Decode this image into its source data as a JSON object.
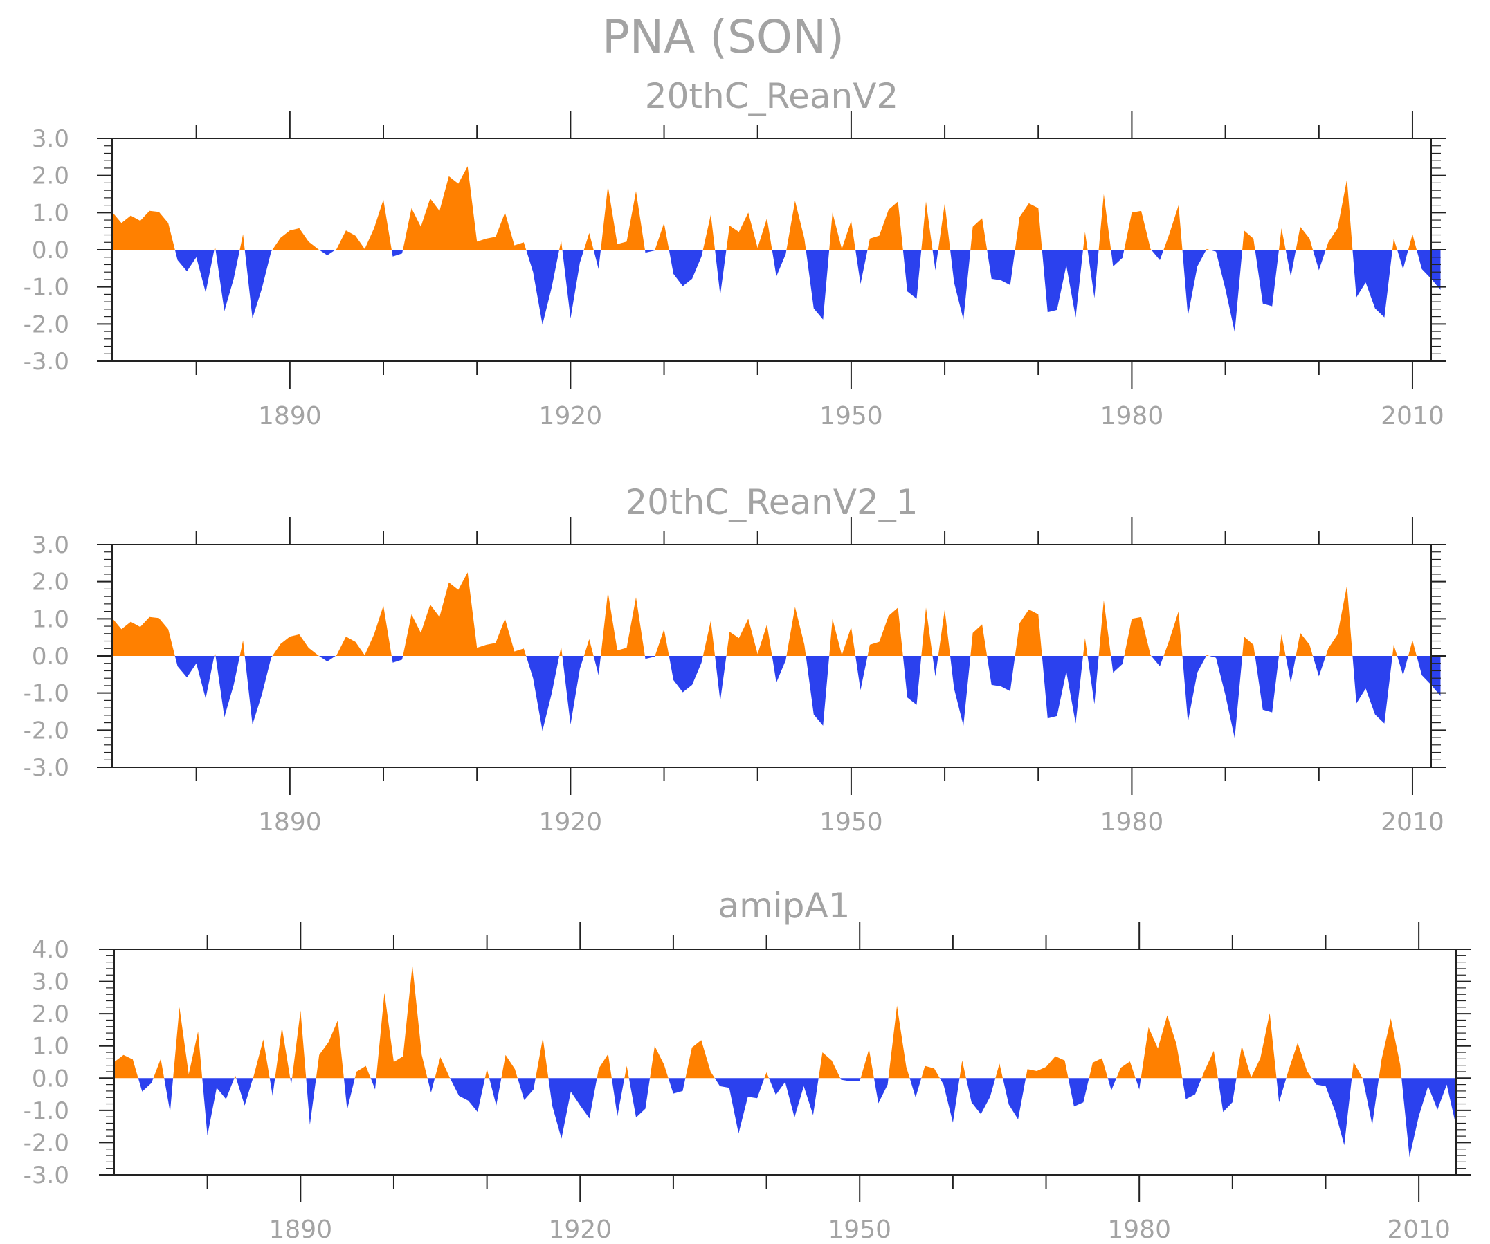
{
  "title": "PNA (SON)",
  "colors": {
    "positive": "#ff8000",
    "negative": "#2b41ee",
    "axis": "#222222",
    "text": "#a3a3a3"
  },
  "chart_data": [
    {
      "type": "area",
      "title": "20thC_ReanV2",
      "xlim": [
        1871,
        2012
      ],
      "ylim": [
        -3,
        3
      ],
      "yticks": [
        "3.0",
        "2.0",
        "1.0",
        "0.0",
        "-1.0",
        "-2.0",
        "-3.0"
      ],
      "xtick_labels": [
        "1890",
        "1920",
        "1950",
        "1980",
        "2010"
      ],
      "x_start": 1871,
      "values": [
        1.02,
        0.72,
        0.92,
        0.78,
        1.05,
        1.02,
        0.72,
        -0.28,
        -0.58,
        -0.2,
        -1.15,
        0.1,
        -1.65,
        -0.78,
        0.42,
        -1.85,
        -1.05,
        -0.05,
        0.32,
        0.52,
        0.58,
        0.22,
        0.02,
        -0.15,
        0.02,
        0.52,
        0.38,
        0.02,
        0.58,
        1.35,
        -0.18,
        -0.1,
        1.12,
        0.62,
        1.38,
        1.05,
        1.98,
        1.78,
        2.25,
        0.22,
        0.3,
        0.35,
        1.0,
        0.12,
        0.2,
        -0.6,
        -2.02,
        -1.0,
        0.25,
        -1.85,
        -0.35,
        0.45,
        -0.52,
        1.72,
        0.15,
        0.22,
        1.58,
        -0.08,
        -0.02,
        0.72,
        -0.65,
        -0.98,
        -0.78,
        -0.18,
        0.95,
        -1.22,
        0.65,
        0.48,
        1.0,
        0.05,
        0.85,
        -0.72,
        -0.12,
        1.32,
        0.3,
        -1.58,
        -1.88,
        1.0,
        0.02,
        0.78,
        -0.92,
        0.3,
        0.38,
        1.08,
        1.3,
        -1.12,
        -1.32,
        1.3,
        -0.55,
        1.25,
        -0.88,
        -1.88,
        0.62,
        0.85,
        -0.78,
        -0.82,
        -0.95,
        0.88,
        1.25,
        1.12,
        -1.68,
        -1.62,
        -0.42,
        -1.82,
        0.48,
        -1.3,
        1.5,
        -0.45,
        -0.22,
        1.0,
        1.05,
        0.02,
        -0.28,
        0.42,
        1.2,
        -1.78,
        -0.45,
        0.02,
        -0.05,
        -1.05,
        -2.22,
        0.52,
        0.3,
        -1.45,
        -1.52,
        0.58,
        -0.72,
        0.62,
        0.3,
        -0.55,
        0.2,
        0.58,
        1.9,
        -1.28,
        -0.88,
        -1.58,
        -1.82,
        0.3,
        -0.52,
        0.42,
        -0.52,
        -0.78,
        -1.08
      ]
    },
    {
      "type": "area",
      "title": "20thC_ReanV2_1",
      "xlim": [
        1871,
        2012
      ],
      "ylim": [
        -3,
        3
      ],
      "yticks": [
        "3.0",
        "2.0",
        "1.0",
        "0.0",
        "-1.0",
        "-2.0",
        "-3.0"
      ],
      "xtick_labels": [
        "1890",
        "1920",
        "1950",
        "1980",
        "2010"
      ],
      "x_start": 1871,
      "values": [
        1.02,
        0.72,
        0.92,
        0.78,
        1.05,
        1.02,
        0.72,
        -0.28,
        -0.58,
        -0.2,
        -1.15,
        0.1,
        -1.65,
        -0.78,
        0.42,
        -1.85,
        -1.05,
        -0.05,
        0.32,
        0.52,
        0.58,
        0.22,
        0.02,
        -0.15,
        0.02,
        0.52,
        0.38,
        0.02,
        0.58,
        1.35,
        -0.18,
        -0.1,
        1.12,
        0.62,
        1.38,
        1.05,
        1.98,
        1.78,
        2.25,
        0.22,
        0.3,
        0.35,
        1.0,
        0.12,
        0.2,
        -0.6,
        -2.02,
        -1.0,
        0.25,
        -1.85,
        -0.35,
        0.45,
        -0.52,
        1.72,
        0.15,
        0.22,
        1.58,
        -0.08,
        -0.02,
        0.72,
        -0.65,
        -0.98,
        -0.78,
        -0.18,
        0.95,
        -1.22,
        0.65,
        0.48,
        1.0,
        0.05,
        0.85,
        -0.72,
        -0.12,
        1.32,
        0.3,
        -1.58,
        -1.88,
        1.0,
        0.02,
        0.78,
        -0.92,
        0.3,
        0.38,
        1.08,
        1.3,
        -1.12,
        -1.32,
        1.3,
        -0.55,
        1.25,
        -0.88,
        -1.88,
        0.62,
        0.85,
        -0.78,
        -0.82,
        -0.95,
        0.88,
        1.25,
        1.12,
        -1.68,
        -1.62,
        -0.42,
        -1.82,
        0.48,
        -1.3,
        1.5,
        -0.45,
        -0.22,
        1.0,
        1.05,
        0.02,
        -0.28,
        0.42,
        1.2,
        -1.78,
        -0.45,
        0.02,
        -0.05,
        -1.05,
        -2.22,
        0.52,
        0.3,
        -1.45,
        -1.52,
        0.58,
        -0.72,
        0.62,
        0.3,
        -0.55,
        0.2,
        0.58,
        1.9,
        -1.28,
        -0.88,
        -1.58,
        -1.82,
        0.3,
        -0.52,
        0.42,
        -0.52,
        -0.78,
        -1.08
      ]
    },
    {
      "type": "area",
      "title": "amipA1",
      "xlim": [
        1870,
        2014
      ],
      "ylim": [
        -3,
        4
      ],
      "yticks": [
        "4.0",
        "3.0",
        "2.0",
        "1.0",
        "0.0",
        "-1.0",
        "-2.0",
        "-3.0"
      ],
      "xtick_labels": [
        "1890",
        "1920",
        "1950",
        "1980",
        "2010"
      ],
      "x_start": 1870,
      "values": [
        0.5,
        0.72,
        0.58,
        -0.42,
        -0.15,
        0.6,
        -1.05,
        2.2,
        0.12,
        1.45,
        -1.78,
        -0.3,
        -0.65,
        0.08,
        -0.85,
        0.1,
        1.2,
        -0.55,
        1.58,
        -0.2,
        2.1,
        -1.45,
        0.72,
        1.12,
        1.8,
        -0.98,
        0.2,
        0.38,
        -0.35,
        2.65,
        0.5,
        0.68,
        3.5,
        0.72,
        -0.45,
        0.65,
        0.02,
        -0.55,
        -0.7,
        -1.05,
        0.28,
        -0.85,
        0.72,
        0.28,
        -0.68,
        -0.35,
        1.25,
        -0.85,
        -1.88,
        -0.42,
        -0.85,
        -1.25,
        0.3,
        0.75,
        -1.18,
        0.38,
        -1.22,
        -0.95,
        1.0,
        0.42,
        -0.48,
        -0.4,
        0.95,
        1.18,
        0.2,
        -0.25,
        -0.3,
        -1.72,
        -0.58,
        -0.62,
        0.18,
        -0.52,
        -0.12,
        -1.22,
        -0.25,
        -1.15,
        0.8,
        0.55,
        -0.05,
        -0.1,
        -0.1,
        0.9,
        -0.78,
        -0.2,
        2.25,
        0.35,
        -0.6,
        0.38,
        0.3,
        -0.2,
        -1.38,
        0.55,
        -0.75,
        -1.12,
        -0.58,
        0.45,
        -0.82,
        -1.28,
        0.28,
        0.22,
        0.35,
        0.68,
        0.55,
        -0.88,
        -0.75,
        0.48,
        0.62,
        -0.38,
        0.32,
        0.52,
        -0.35,
        1.58,
        0.92,
        1.95,
        1.05,
        -0.65,
        -0.5,
        0.22,
        0.85,
        -1.05,
        -0.75,
        1.0,
        0.02,
        0.62,
        2.02,
        -0.75,
        0.22,
        1.1,
        0.22,
        -0.2,
        -0.25,
        -1.02,
        -2.08,
        0.5,
        -0.02,
        -1.45,
        0.58,
        1.85,
        0.42,
        -2.45,
        -1.18,
        -0.25,
        -0.98,
        -0.2,
        -1.48
      ]
    }
  ]
}
